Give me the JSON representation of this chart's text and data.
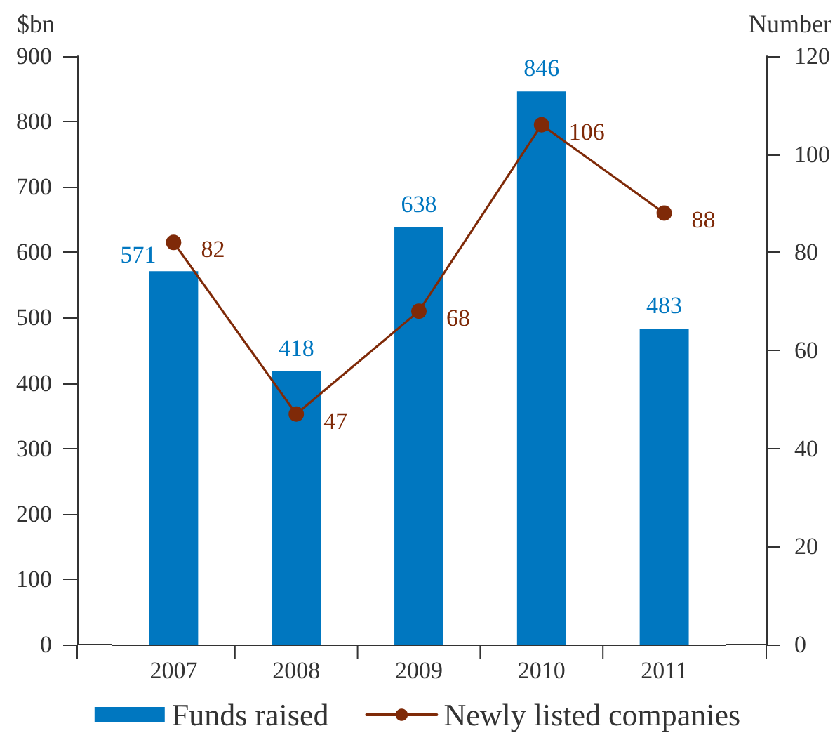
{
  "chart_data": {
    "type": "bar",
    "categories": [
      "2007",
      "2008",
      "2009",
      "2010",
      "2011"
    ],
    "ylabel": "$bn",
    "y2label": "Number",
    "series": [
      {
        "name": "Funds raised",
        "color": "#0077c0",
        "values": [
          571,
          418,
          638,
          846,
          483
        ]
      },
      {
        "name": "Newly listed companies",
        "type": "line",
        "axis": "y2",
        "color": "#7f2a08",
        "values": [
          82,
          47,
          68,
          106,
          88
        ]
      }
    ],
    "ylim": [
      0,
      900
    ],
    "yticks": [
      0,
      100,
      200,
      300,
      400,
      500,
      600,
      700,
      800,
      900
    ],
    "y2lim": [
      0,
      120
    ],
    "y2ticks": [
      0,
      20,
      40,
      60,
      80,
      100,
      120
    ],
    "data_labels": true,
    "marker": "circle",
    "legend": "bottom",
    "grid": false
  }
}
